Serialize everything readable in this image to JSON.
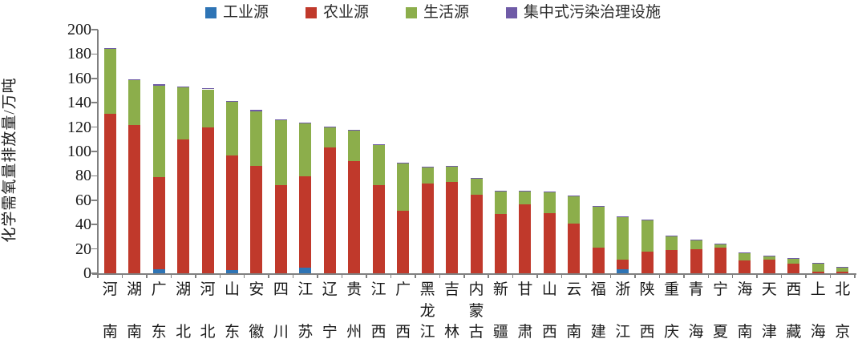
{
  "chart_data": {
    "type": "bar",
    "stacked": true,
    "title": "",
    "ylabel": "化学需氧量排放量/万吨",
    "xlabel": "",
    "ylim": [
      0,
      200
    ],
    "ytick_step": 20,
    "grid": false,
    "legend_position": "top",
    "categories": [
      "河南",
      "湖南",
      "广东",
      "湖北",
      "河北",
      "山东",
      "安徽",
      "四川",
      "江苏",
      "辽宁",
      "贵州",
      "江西",
      "广西",
      "黑龙江",
      "吉林",
      "内蒙古",
      "新疆",
      "甘肃",
      "山西",
      "云南",
      "福建",
      "浙江",
      "陕西",
      "重庆",
      "青海",
      "宁夏",
      "海南",
      "天津",
      "西藏",
      "上海",
      "北京"
    ],
    "series": [
      {
        "name": "工业源",
        "color": "#2E74B5",
        "values": [
          0,
          0,
          3,
          0,
          0,
          2.5,
          0,
          0,
          4.5,
          0,
          0,
          0,
          0,
          0,
          0,
          0,
          0,
          0,
          0,
          0,
          0,
          3.5,
          0,
          0,
          0,
          0,
          0,
          0,
          0,
          0,
          0
        ]
      },
      {
        "name": "农业源",
        "color": "#C0392B",
        "values": [
          131,
          122,
          76,
          110,
          120,
          94,
          88,
          72.5,
          75,
          103,
          92,
          72.5,
          51.5,
          74,
          75,
          64.5,
          49,
          56.5,
          49.5,
          40.5,
          21,
          7.5,
          18,
          19,
          20,
          21,
          10.5,
          11.5,
          8,
          1.5,
          1
        ]
      },
      {
        "name": "生活源",
        "color": "#8CAE4B",
        "values": [
          53,
          36.5,
          75,
          42.5,
          31,
          44,
          45,
          53,
          43.5,
          17,
          25,
          32.5,
          38.5,
          13,
          13,
          13,
          18,
          10.5,
          17,
          23,
          33.5,
          35,
          25.5,
          11.5,
          7.5,
          3,
          6.5,
          2.5,
          4,
          7,
          3.7
        ]
      },
      {
        "name": "集中式污染治理设施",
        "color": "#6F5BA7",
        "values": [
          1,
          1,
          1,
          1,
          1,
          1,
          1,
          1,
          1,
          0.5,
          1,
          1,
          1,
          0.5,
          0.5,
          0.5,
          0.5,
          0.5,
          0.5,
          0.5,
          0.5,
          0.5,
          0.5,
          0.5,
          0.3,
          0.3,
          0.3,
          0.3,
          0.2,
          0.3,
          0.3
        ]
      }
    ]
  },
  "axis": {
    "y_ticks": [
      "0",
      "20",
      "40",
      "60",
      "80",
      "100",
      "120",
      "140",
      "160",
      "180",
      "200"
    ]
  }
}
